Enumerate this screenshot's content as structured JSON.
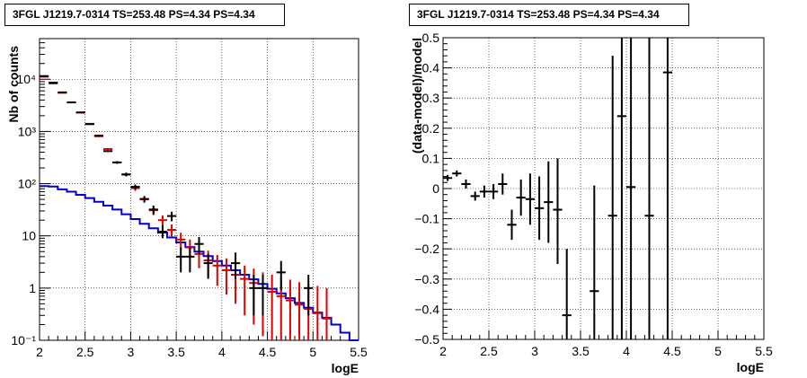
{
  "panels": [
    {
      "title": "3FGL J1219.7-0314 TS=253.48 PS=4.34 PS=4.34"
    },
    {
      "title": "3FGL J1219.7-0314 TS=253.48 PS=4.34 PS=4.34"
    }
  ],
  "chart_data": [
    {
      "type": "line",
      "title": "3FGL J1219.7-0314 TS=253.48 PS=4.34 PS=4.34",
      "xlabel": "logE",
      "ylabel": "Nb of counts",
      "xlim": [
        2,
        5.5
      ],
      "ylim": [
        0.1,
        60000
      ],
      "yscale": "log",
      "grid": true,
      "xticks": [
        "2",
        "2.5",
        "3",
        "3.5",
        "4",
        "4.5",
        "5",
        "5.5"
      ],
      "yticks": [
        "10⁻¹",
        "1",
        "10",
        "10²",
        "10³",
        "10⁴"
      ],
      "colors": {
        "data": "#000000",
        "model": "#dd0000",
        "component": "#0000cc"
      },
      "bins": [
        2.0,
        2.1,
        2.2,
        2.3,
        2.4,
        2.5,
        2.6,
        2.7,
        2.8,
        2.9,
        3.0,
        3.1,
        3.2,
        3.3,
        3.4,
        3.5,
        3.6,
        3.7,
        3.8,
        3.9,
        4.0,
        4.1,
        4.2,
        4.3,
        4.4,
        4.5,
        4.6,
        4.7,
        4.8,
        4.9,
        5.0,
        5.1,
        5.2,
        5.3,
        5.4,
        5.5
      ],
      "data_points": [
        {
          "x": 2.05,
          "y": 11500,
          "lo": 11300,
          "hi": 11700
        },
        {
          "x": 2.15,
          "y": 8600,
          "lo": 8450,
          "hi": 8750
        },
        {
          "x": 2.25,
          "y": 5600,
          "lo": 5500,
          "hi": 5700
        },
        {
          "x": 2.35,
          "y": 3600,
          "lo": 3500,
          "hi": 3700
        },
        {
          "x": 2.45,
          "y": 2300,
          "lo": 2250,
          "hi": 2350
        },
        {
          "x": 2.55,
          "y": 1380,
          "lo": 1340,
          "hi": 1420
        },
        {
          "x": 2.65,
          "y": 830,
          "lo": 800,
          "hi": 860
        },
        {
          "x": 2.75,
          "y": 420,
          "lo": 400,
          "hi": 440
        },
        {
          "x": 2.85,
          "y": 255,
          "lo": 240,
          "hi": 270
        },
        {
          "x": 2.95,
          "y": 150,
          "lo": 138,
          "hi": 162
        },
        {
          "x": 3.05,
          "y": 87,
          "lo": 78,
          "hi": 96
        },
        {
          "x": 3.15,
          "y": 51,
          "lo": 44,
          "hi": 58
        },
        {
          "x": 3.25,
          "y": 32,
          "lo": 26,
          "hi": 38
        },
        {
          "x": 3.35,
          "y": 12,
          "lo": 9,
          "hi": 16
        },
        {
          "x": 3.45,
          "y": 24,
          "lo": 19,
          "hi": 29
        },
        {
          "x": 3.55,
          "y": 4,
          "lo": 2,
          "hi": 6
        },
        {
          "x": 3.65,
          "y": 4,
          "lo": 2,
          "hi": 6
        },
        {
          "x": 3.75,
          "y": 7,
          "lo": 4.5,
          "hi": 9.5
        },
        {
          "x": 3.85,
          "y": 3,
          "lo": 1.5,
          "hi": 4.5
        },
        {
          "x": 4.15,
          "y": 3,
          "lo": 1.5,
          "hi": 4.8
        },
        {
          "x": 4.35,
          "y": 1,
          "lo": 0.3,
          "hi": 1.8
        },
        {
          "x": 4.45,
          "y": 1,
          "lo": 0.3,
          "hi": 1.8
        },
        {
          "x": 4.65,
          "y": 2,
          "lo": 0.9,
          "hi": 3.3
        },
        {
          "x": 4.95,
          "y": 1,
          "lo": 0.3,
          "hi": 1.8
        }
      ],
      "model_points": [
        {
          "x": 2.05,
          "y": 11200,
          "lo": 10900,
          "hi": 11500
        },
        {
          "x": 2.15,
          "y": 8300,
          "lo": 8100,
          "hi": 8500
        },
        {
          "x": 2.25,
          "y": 5500,
          "lo": 5350,
          "hi": 5650
        },
        {
          "x": 2.35,
          "y": 3600,
          "lo": 3500,
          "hi": 3700
        },
        {
          "x": 2.45,
          "y": 2320,
          "lo": 2250,
          "hi": 2390
        },
        {
          "x": 2.55,
          "y": 1400,
          "lo": 1360,
          "hi": 1440
        },
        {
          "x": 2.65,
          "y": 810,
          "lo": 780,
          "hi": 840
        },
        {
          "x": 2.75,
          "y": 460,
          "lo": 440,
          "hi": 480
        },
        {
          "x": 2.85,
          "y": 255,
          "lo": 240,
          "hi": 270
        },
        {
          "x": 2.95,
          "y": 150,
          "lo": 138,
          "hi": 162
        },
        {
          "x": 3.05,
          "y": 82,
          "lo": 73,
          "hi": 91
        },
        {
          "x": 3.15,
          "y": 50,
          "lo": 43,
          "hi": 57
        },
        {
          "x": 3.25,
          "y": 31,
          "lo": 25,
          "hi": 37
        },
        {
          "x": 3.35,
          "y": 20,
          "lo": 15.5,
          "hi": 24.5
        },
        {
          "x": 3.45,
          "y": 13,
          "lo": 9.5,
          "hi": 16.5
        },
        {
          "x": 3.55,
          "y": 8.5,
          "lo": 5.6,
          "hi": 11.5
        },
        {
          "x": 3.65,
          "y": 6,
          "lo": 3.6,
          "hi": 8.5
        },
        {
          "x": 3.75,
          "y": 4.5,
          "lo": 2.4,
          "hi": 6.6
        },
        {
          "x": 3.85,
          "y": 3.4,
          "lo": 1.6,
          "hi": 5.2
        },
        {
          "x": 3.95,
          "y": 2.7,
          "lo": 1.1,
          "hi": 4.3
        },
        {
          "x": 4.05,
          "y": 2.2,
          "lo": 0.75,
          "hi": 3.7
        },
        {
          "x": 4.15,
          "y": 1.8,
          "lo": 0.5,
          "hi": 3.1
        },
        {
          "x": 4.25,
          "y": 1.5,
          "lo": 0.3,
          "hi": 2.7
        },
        {
          "x": 4.35,
          "y": 1.25,
          "lo": 0.2,
          "hi": 2.35
        },
        {
          "x": 4.45,
          "y": 1.0,
          "lo": 0.12,
          "hi": 2.0
        },
        {
          "x": 4.55,
          "y": 0.85,
          "lo": 0.1,
          "hi": 1.8
        },
        {
          "x": 4.65,
          "y": 0.7,
          "lo": 0.1,
          "hi": 1.6
        },
        {
          "x": 4.75,
          "y": 0.58,
          "lo": 0.1,
          "hi": 1.45
        },
        {
          "x": 4.85,
          "y": 0.48,
          "lo": 0.1,
          "hi": 1.3
        },
        {
          "x": 4.95,
          "y": 0.4,
          "lo": 0.1,
          "hi": 1.2
        },
        {
          "x": 5.05,
          "y": 0.33,
          "lo": 0.1,
          "hi": 1.1
        },
        {
          "x": 5.15,
          "y": 0.26,
          "lo": 0.1,
          "hi": 1.0
        }
      ],
      "component_steps": [
        90,
        88,
        78,
        70,
        61,
        53,
        45,
        38,
        32,
        26,
        21,
        17,
        14,
        11.5,
        9.3,
        7.5,
        6.1,
        5.0,
        4.1,
        3.3,
        2.7,
        2.2,
        1.8,
        1.47,
        1.2,
        0.97,
        0.79,
        0.64,
        0.52,
        0.42,
        0.34,
        0.27,
        0.2,
        0.14,
        0.1
      ]
    },
    {
      "type": "scatter",
      "title": "3FGL J1219.7-0314 TS=253.48 PS=4.34 PS=4.34",
      "xlabel": "logE",
      "ylabel": "(data-model)/model",
      "xlim": [
        2,
        5.5
      ],
      "ylim": [
        -0.5,
        0.5
      ],
      "grid": true,
      "xticks": [
        "2",
        "2.5",
        "3",
        "3.5",
        "4",
        "4.5",
        "5",
        "5.5"
      ],
      "yticks": [
        "−0.5",
        "−0.4",
        "−0.3",
        "−0.2",
        "−0.1",
        "0",
        "0.1",
        "0.2",
        "0.3",
        "0.4",
        "0.5"
      ],
      "points": [
        {
          "x": 2.05,
          "y": 0.035,
          "lo": 0.025,
          "hi": 0.045
        },
        {
          "x": 2.15,
          "y": 0.05,
          "lo": 0.04,
          "hi": 0.06
        },
        {
          "x": 2.25,
          "y": 0.015,
          "lo": 0.0,
          "hi": 0.03
        },
        {
          "x": 2.35,
          "y": -0.025,
          "lo": -0.04,
          "hi": -0.01
        },
        {
          "x": 2.45,
          "y": -0.01,
          "lo": -0.03,
          "hi": 0.01
        },
        {
          "x": 2.55,
          "y": -0.01,
          "lo": -0.035,
          "hi": 0.015
        },
        {
          "x": 2.65,
          "y": 0.015,
          "lo": -0.02,
          "hi": 0.05
        },
        {
          "x": 2.75,
          "y": -0.12,
          "lo": -0.17,
          "hi": -0.07
        },
        {
          "x": 2.85,
          "y": -0.03,
          "lo": -0.09,
          "hi": 0.03
        },
        {
          "x": 2.95,
          "y": -0.035,
          "lo": -0.12,
          "hi": 0.05
        },
        {
          "x": 3.05,
          "y": -0.065,
          "lo": -0.17,
          "hi": 0.04
        },
        {
          "x": 3.15,
          "y": -0.045,
          "lo": -0.18,
          "hi": 0.09
        },
        {
          "x": 3.25,
          "y": -0.07,
          "lo": -0.25,
          "hi": 0.1
        },
        {
          "x": 3.35,
          "y": -0.42,
          "lo": -0.5,
          "hi": -0.2
        },
        {
          "x": 3.65,
          "y": -0.34,
          "lo": -0.5,
          "hi": 0.01
        },
        {
          "x": 3.85,
          "y": -0.09,
          "lo": -0.5,
          "hi": 0.44
        },
        {
          "x": 3.95,
          "y": 0.24,
          "lo": -0.5,
          "hi": 0.5
        },
        {
          "x": 4.05,
          "y": 0.005,
          "lo": -0.5,
          "hi": 0.5
        },
        {
          "x": 4.25,
          "y": -0.09,
          "lo": -0.5,
          "hi": 0.5
        },
        {
          "x": 4.45,
          "y": 0.385,
          "lo": -0.5,
          "hi": 0.5
        }
      ]
    }
  ]
}
